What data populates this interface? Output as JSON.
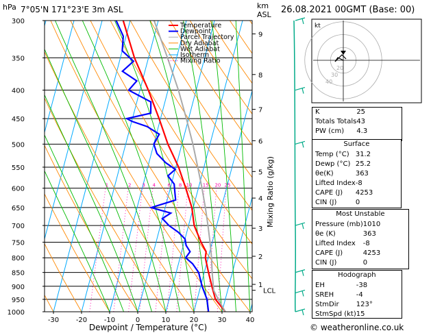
{
  "header": {
    "location": "7°05'N  171°23'E  3m  ASL",
    "hpa_label": "hPa",
    "km_label": "km",
    "asl_label": "ASL",
    "datetime": "26.08.2021  00GMT  (Base: 00)"
  },
  "footer": {
    "credit": "© weatheronline.co.uk"
  },
  "colors": {
    "temperature": "#ff0000",
    "dewpoint": "#0000ff",
    "parcel": "#aaaaaa",
    "dry_adiabat": "#ff8800",
    "wet_adiabat": "#00bb00",
    "isotherm": "#00aaff",
    "mixing_ratio": "#ff00aa"
  },
  "chart_data": {
    "type": "skew-t",
    "xlabel": "Dewpoint / Temperature (°C)",
    "ylabel_right": "Mixing Ratio (g/kg)",
    "x_ticks": [
      -30,
      -20,
      -10,
      0,
      10,
      20,
      30,
      40
    ],
    "xlim": [
      -35,
      40
    ],
    "pressure_levels": [
      300,
      350,
      400,
      450,
      500,
      550,
      600,
      650,
      700,
      750,
      800,
      850,
      900,
      950,
      1000
    ],
    "km_ticks": [
      {
        "p": 317,
        "label": "9"
      },
      {
        "p": 375,
        "label": "8"
      },
      {
        "p": 433,
        "label": "7"
      },
      {
        "p": 493,
        "label": "6"
      },
      {
        "p": 560,
        "label": "5"
      },
      {
        "p": 625,
        "label": "4"
      },
      {
        "p": 708,
        "label": "3"
      },
      {
        "p": 795,
        "label": "2"
      },
      {
        "p": 893,
        "label": "1"
      }
    ],
    "lcl": {
      "p": 915,
      "label": "LCL"
    },
    "mixing_ratio_labels": [
      {
        "w": 1,
        "label": "1"
      },
      {
        "w": 2,
        "label": "2"
      },
      {
        "w": 3,
        "label": "3"
      },
      {
        "w": 4,
        "label": "4"
      },
      {
        "w": 6,
        "label": "6"
      },
      {
        "w": 8,
        "label": "8"
      },
      {
        "w": 10,
        "label": "10"
      },
      {
        "w": 15,
        "label": "15"
      },
      {
        "w": 20,
        "label": "20"
      },
      {
        "w": 25,
        "label": "25"
      }
    ],
    "legend": [
      "Temperature",
      "Dewpoint",
      "Parcel Trajectory",
      "Dry Adiabat",
      "Wet Adiabat",
      "Isotherm",
      "Mixing Ratio"
    ],
    "series": [
      {
        "name": "Temperature",
        "points": [
          [
            1000,
            31.2
          ],
          [
            950,
            26.5
          ],
          [
            900,
            24.0
          ],
          [
            850,
            21.5
          ],
          [
            800,
            19.0
          ],
          [
            780,
            18.7
          ],
          [
            750,
            16.0
          ],
          [
            700,
            12.0
          ],
          [
            650,
            9.5
          ],
          [
            600,
            5.5
          ],
          [
            550,
            1.0
          ],
          [
            500,
            -5.0
          ],
          [
            450,
            -10.5
          ],
          [
            400,
            -17.0
          ],
          [
            350,
            -25.0
          ],
          [
            300,
            -32.5
          ]
        ]
      },
      {
        "name": "Dewpoint",
        "points": [
          [
            1000,
            25.2
          ],
          [
            950,
            23.5
          ],
          [
            900,
            20.5
          ],
          [
            850,
            18.0
          ],
          [
            820,
            15.0
          ],
          [
            800,
            12.0
          ],
          [
            780,
            13.0
          ],
          [
            760,
            11.0
          ],
          [
            740,
            10.0
          ],
          [
            720,
            7.0
          ],
          [
            700,
            3.0
          ],
          [
            680,
            0.0
          ],
          [
            665,
            2.5
          ],
          [
            650,
            -5.0
          ],
          [
            630,
            3.0
          ],
          [
            610,
            2.0
          ],
          [
            590,
            1.0
          ],
          [
            570,
            -2.0
          ],
          [
            555,
            0.0
          ],
          [
            540,
            -4.0
          ],
          [
            520,
            -8.0
          ],
          [
            500,
            -10.0
          ],
          [
            480,
            -9.0
          ],
          [
            465,
            -14.0
          ],
          [
            455,
            -20.0
          ],
          [
            450,
            -22.0
          ],
          [
            440,
            -14.0
          ],
          [
            420,
            -15.0
          ],
          [
            400,
            -24.0
          ],
          [
            385,
            -22.0
          ],
          [
            370,
            -28.0
          ],
          [
            355,
            -25.0
          ],
          [
            340,
            -30.0
          ],
          [
            320,
            -31.0
          ],
          [
            300,
            -35.0
          ]
        ]
      },
      {
        "name": "Parcel Trajectory",
        "points": [
          [
            1000,
            31.2
          ],
          [
            950,
            27.5
          ],
          [
            915,
            25.0
          ],
          [
            850,
            22.8
          ],
          [
            800,
            21.2
          ],
          [
            750,
            19.2
          ],
          [
            700,
            16.9
          ],
          [
            650,
            14.3
          ],
          [
            600,
            11.3
          ],
          [
            550,
            7.8
          ],
          [
            500,
            3.9
          ],
          [
            450,
            -0.8
          ],
          [
            400,
            -6.3
          ],
          [
            350,
            -13.2
          ],
          [
            300,
            -21.5
          ]
        ]
      }
    ],
    "wind_barbs_p": [
      300,
      400,
      500,
      700,
      850,
      925,
      1000
    ]
  },
  "hodograph": {
    "label": "kt",
    "rings": [
      "20",
      "30",
      "40"
    ]
  },
  "indices": [
    {
      "label": "K",
      "value": "25"
    },
    {
      "label": "Totals Totals",
      "value": "43"
    },
    {
      "label": "PW (cm)",
      "value": "4.3"
    }
  ],
  "surface": {
    "title": "Surface",
    "rows": [
      {
        "label": "Temp (°C)",
        "value": "31.2"
      },
      {
        "label": "Dewp (°C)",
        "value": "25.2"
      },
      {
        "label": "θe(K)",
        "value": "363"
      },
      {
        "label": "Lifted Index",
        "value": "-8"
      },
      {
        "label": "CAPE (J)",
        "value": "4253"
      },
      {
        "label": "CIN (J)",
        "value": "0"
      }
    ]
  },
  "most_unstable": {
    "title": "Most Unstable",
    "rows": [
      {
        "label": "Pressure (mb)",
        "value": "1010"
      },
      {
        "label": "θe (K)",
        "value": "363"
      },
      {
        "label": "Lifted Index",
        "value": "-8"
      },
      {
        "label": "CAPE (J)",
        "value": "4253"
      },
      {
        "label": "CIN (J)",
        "value": "0"
      }
    ]
  },
  "hodo_table": {
    "title": "Hodograph",
    "rows": [
      {
        "label": "EH",
        "value": "-38"
      },
      {
        "label": "SREH",
        "value": "-4"
      },
      {
        "label": "StmDir",
        "value": "123°"
      },
      {
        "label": "StmSpd (kt)",
        "value": "15"
      }
    ]
  }
}
